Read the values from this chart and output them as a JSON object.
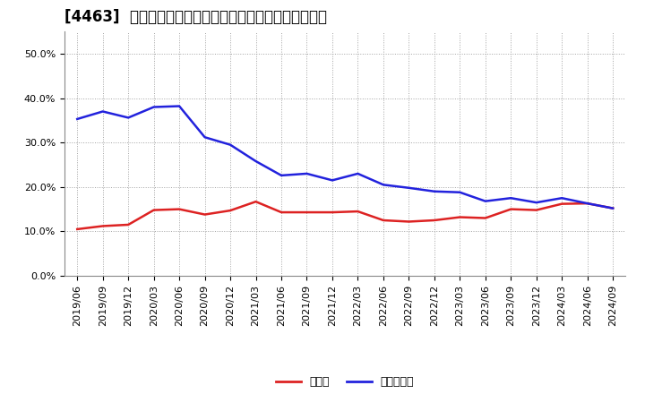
{
  "title": "[4463]  現預金、有利子負債の総資産に対する比率の推移",
  "legend_cash": "現預金",
  "legend_debt": "有利子負債",
  "x_labels": [
    "2019/06",
    "2019/09",
    "2019/12",
    "2020/03",
    "2020/06",
    "2020/09",
    "2020/12",
    "2021/03",
    "2021/06",
    "2021/09",
    "2021/12",
    "2022/03",
    "2022/06",
    "2022/09",
    "2022/12",
    "2023/03",
    "2023/06",
    "2023/09",
    "2023/12",
    "2024/03",
    "2024/06",
    "2024/09"
  ],
  "cash": [
    0.105,
    0.112,
    0.115,
    0.148,
    0.15,
    0.138,
    0.147,
    0.167,
    0.143,
    0.143,
    0.143,
    0.145,
    0.125,
    0.122,
    0.125,
    0.132,
    0.13,
    0.15,
    0.148,
    0.162,
    0.163,
    0.152
  ],
  "debt": [
    0.353,
    0.37,
    0.356,
    0.38,
    0.382,
    0.312,
    0.295,
    0.258,
    0.226,
    0.23,
    0.215,
    0.23,
    0.205,
    0.198,
    0.19,
    0.188,
    0.168,
    0.175,
    0.165,
    0.175,
    0.163,
    0.152
  ],
  "cash_color": "#dd2222",
  "debt_color": "#2222dd",
  "bg_color": "#ffffff",
  "plot_bg_color": "#ffffff",
  "grid_color": "#999999",
  "ylim": [
    0.0,
    0.55
  ],
  "yticks": [
    0.0,
    0.1,
    0.2,
    0.3,
    0.4,
    0.5
  ],
  "title_fontsize": 12,
  "legend_fontsize": 9,
  "tick_fontsize": 8
}
